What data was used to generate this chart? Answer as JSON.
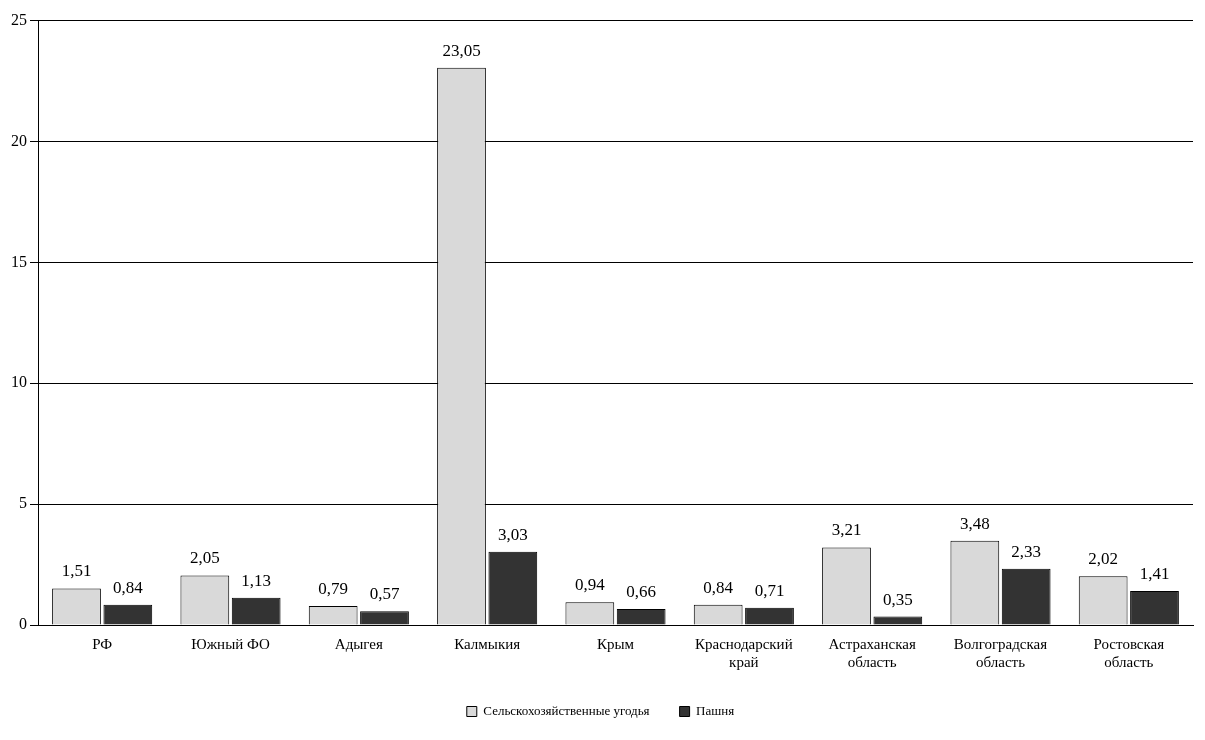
{
  "chart_data": {
    "type": "bar",
    "categories": [
      "РФ",
      "Южный ФО",
      "Адыгея",
      "Калмыкия",
      "Крым",
      "Краснодарский край",
      "Астраханская область",
      "Волгоградская область",
      "Ростовская область"
    ],
    "series": [
      {
        "name": "Сельскохозяйственные угодья",
        "color": "#d9d9d9",
        "values": [
          1.51,
          2.05,
          0.79,
          23.05,
          0.94,
          0.84,
          3.21,
          3.48,
          2.02
        ],
        "value_labels": [
          "1,51",
          "2,05",
          "0,79",
          "23,05",
          "0,94",
          "0,84",
          "3,21",
          "3,48",
          "2,02"
        ]
      },
      {
        "name": "Пашня",
        "color": "#333333",
        "values": [
          0.84,
          1.13,
          0.57,
          3.03,
          0.66,
          0.71,
          0.35,
          2.33,
          1.41
        ],
        "value_labels": [
          "0,84",
          "1,13",
          "0,57",
          "3,03",
          "0,66",
          "0,71",
          "0,35",
          "2,33",
          "1,41"
        ]
      }
    ],
    "ylim": [
      0,
      25
    ],
    "yticks": [
      0,
      5,
      10,
      15,
      20,
      25
    ],
    "grid": "y",
    "legend": "bottom"
  }
}
